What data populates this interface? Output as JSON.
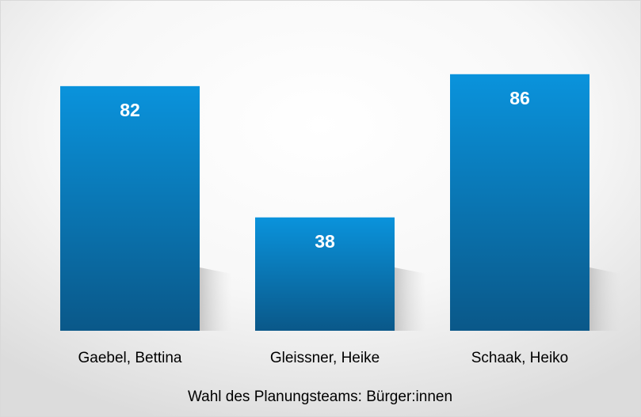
{
  "chart_data": {
    "type": "bar",
    "title": "Wahl des Planungsteams: Bürger:innen",
    "categories": [
      "Gaebel, Bettina",
      "Gleissner, Heike",
      "Schaak, Heiko"
    ],
    "values": [
      82,
      38,
      86
    ],
    "color": "#0b7fc4",
    "ylim": [
      0,
      100
    ],
    "grid": false
  }
}
